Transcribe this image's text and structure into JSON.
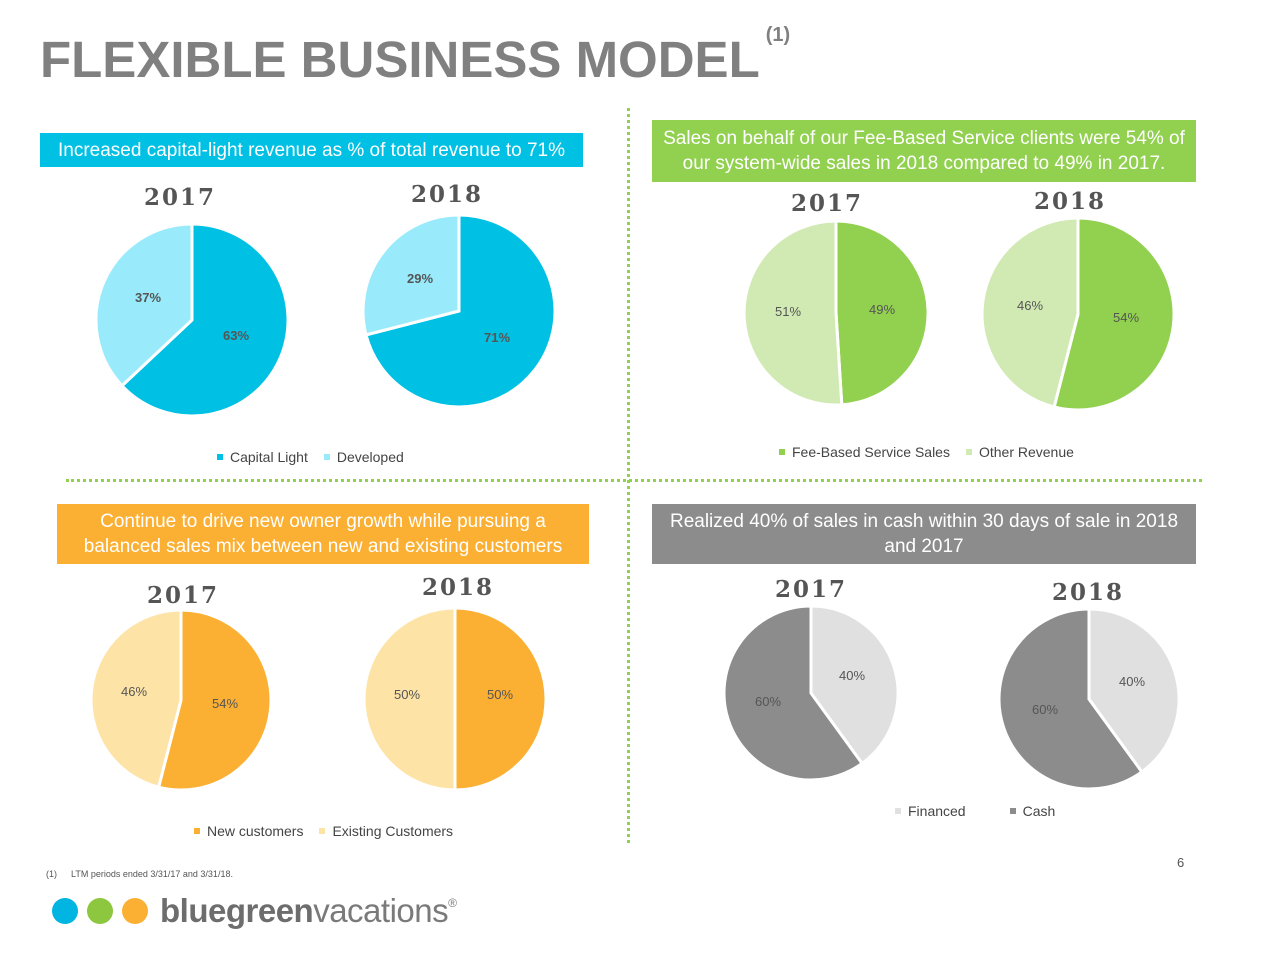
{
  "title": "FLEXIBLE BUSINESS MODEL",
  "title_sup": "(1)",
  "footnote": {
    "num": "(1)",
    "text": "LTM periods ended 3/31/17 and 3/31/18."
  },
  "page_number": "6",
  "logo": {
    "bold": "bluegreen",
    "light": "vacations",
    "reg": "®",
    "dot_colors": [
      "#00b5e2",
      "#8dc63f",
      "#fbb034"
    ]
  },
  "banners": {
    "q1": "Increased capital-light revenue as % of total revenue to 71%",
    "q2": "Sales on behalf of our Fee-Based Service clients were 54% of our system-wide sales in 2018 compared to 49% in 2017.",
    "q3": "Continue to drive new owner growth while pursuing a balanced sales mix between new and existing customers",
    "q4": "Realized 40% of sales in cash within 30 days of sale in 2018 and 2017"
  },
  "chart_data": [
    {
      "type": "pie",
      "title": "2017",
      "categories": [
        "Capital Light",
        "Developed"
      ],
      "values": [
        63,
        37
      ],
      "labels": [
        "63%",
        "37%"
      ],
      "colors": [
        "#00c0e4",
        "#99ebfb"
      ],
      "legend": "bottom"
    },
    {
      "type": "pie",
      "title": "2018",
      "categories": [
        "Capital Light",
        "Developed"
      ],
      "values": [
        71,
        29
      ],
      "labels": [
        "71%",
        "29%"
      ],
      "colors": [
        "#00c0e4",
        "#99ebfb"
      ],
      "legend": "bottom"
    },
    {
      "type": "pie",
      "title": "2017",
      "categories": [
        "Fee-Based Service Sales",
        "Other Revenue"
      ],
      "values": [
        49,
        51
      ],
      "labels": [
        "49%",
        "51%"
      ],
      "colors": [
        "#92d050",
        "#d1eab4"
      ],
      "legend": "bottom"
    },
    {
      "type": "pie",
      "title": "2018",
      "categories": [
        "Fee-Based Service Sales",
        "Other Revenue"
      ],
      "values": [
        54,
        46
      ],
      "labels": [
        "54%",
        "46%"
      ],
      "colors": [
        "#92d050",
        "#d1eab4"
      ],
      "legend": "bottom"
    },
    {
      "type": "pie",
      "title": "2017",
      "categories": [
        "New customers",
        "Existing Customers"
      ],
      "values": [
        54,
        46
      ],
      "labels": [
        "54%",
        "46%"
      ],
      "colors": [
        "#fbb033",
        "#fde4a6"
      ],
      "legend": "bottom"
    },
    {
      "type": "pie",
      "title": "2018",
      "categories": [
        "New customers",
        "Existing Customers"
      ],
      "values": [
        50,
        50
      ],
      "labels": [
        "50%",
        "50%"
      ],
      "colors": [
        "#fbb033",
        "#fde4a6"
      ],
      "legend": "bottom"
    },
    {
      "type": "pie",
      "title": "2017",
      "categories": [
        "Financed",
        "Cash"
      ],
      "values": [
        60,
        40
      ],
      "labels": [
        "60%",
        "40%"
      ],
      "colors": [
        "#8c8c8c",
        "#e0e0e0"
      ],
      "legend": "bottom"
    },
    {
      "type": "pie",
      "title": "2018",
      "categories": [
        "Financed",
        "Cash"
      ],
      "values": [
        60,
        40
      ],
      "labels": [
        "60%",
        "40%"
      ],
      "colors": [
        "#8c8c8c",
        "#e0e0e0"
      ],
      "legend": "bottom"
    }
  ],
  "legends": {
    "q1": [
      {
        "label": "Capital Light",
        "color": "#00c0e4"
      },
      {
        "label": "Developed",
        "color": "#99ebfb"
      }
    ],
    "q2": [
      {
        "label": "Fee-Based Service Sales",
        "color": "#92d050"
      },
      {
        "label": "Other Revenue",
        "color": "#d1eab4"
      }
    ],
    "q3": [
      {
        "label": "New customers",
        "color": "#fbb033"
      },
      {
        "label": "Existing Customers",
        "color": "#fde4a6"
      }
    ],
    "q4": [
      {
        "label": "Financed",
        "color": "#e0e0e0"
      },
      {
        "label": "Cash",
        "color": "#8c8c8c"
      }
    ]
  }
}
